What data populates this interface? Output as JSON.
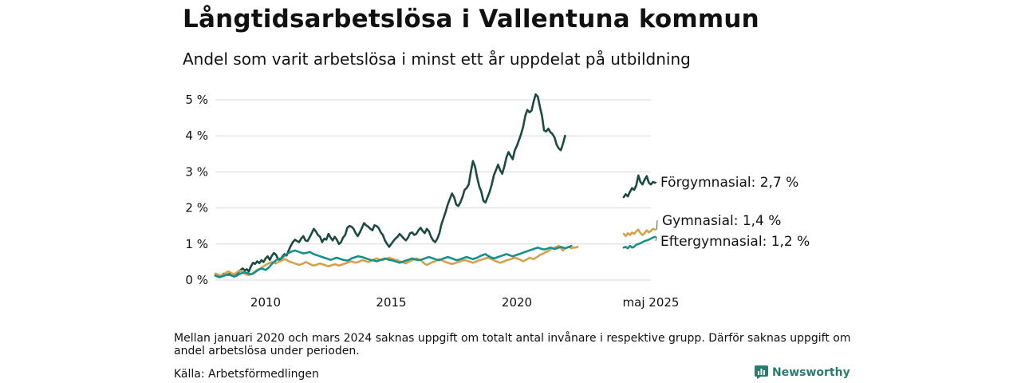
{
  "title": "Långtidsarbetslösa i Vallentuna kommun",
  "subtitle": "Andel som varit arbetslösa i minst ett år uppdelat på utbildning",
  "note": "Mellan januari 2020 och mars 2024 saknas uppgift om totalt antal invånare i respektive grupp. Därför saknas uppgift om andel arbetslösa under perioden.",
  "source": "Källa: Arbetsförmedlingen",
  "brand": "Newsworthy",
  "colors": {
    "forgymnasial": "#1d4a40",
    "gymnasial": "#d4a24c",
    "eftergymnasial": "#15908a",
    "grid": "#d9d9d9",
    "brand": "#2a7b6f"
  },
  "chart_data": {
    "type": "line",
    "title": "Långtidsarbetslösa i Vallentuna kommun",
    "subtitle": "Andel som varit arbetslösa i minst ett år uppdelat på utbildning",
    "y_unit": "%",
    "ylim": [
      0,
      5.2
    ],
    "y_ticks": [
      {
        "value": 0,
        "label": "0 %"
      },
      {
        "value": 1,
        "label": "1 %"
      },
      {
        "value": 2,
        "label": "2 %"
      },
      {
        "value": 3,
        "label": "3 %"
      },
      {
        "value": 4,
        "label": "4 %"
      },
      {
        "value": 5,
        "label": "5 %"
      }
    ],
    "x_ticks": [
      {
        "date": "2010-01",
        "label": "2010"
      },
      {
        "date": "2015-01",
        "label": "2015"
      },
      {
        "date": "2020-01",
        "label": "2020"
      },
      {
        "date": "2025-05",
        "label": "maj 2025"
      }
    ],
    "grid": true,
    "legend": "direct labels at right end of lines",
    "series": [
      {
        "name": "Förgymnasial",
        "end_label": "Förgymnasial: 2,7 %",
        "color": "#1d4a40",
        "segments": [
          {
            "start": "2008-01",
            "values": [
              0.13,
              0.1,
              0.08,
              0.12,
              0.18,
              0.16,
              0.14,
              0.2,
              0.15,
              0.1,
              0.18,
              0.22,
              0.28,
              0.32,
              0.27,
              0.3,
              0.24,
              0.38,
              0.48,
              0.45,
              0.52,
              0.47,
              0.55,
              0.5,
              0.6,
              0.66,
              0.56,
              0.68,
              0.75,
              0.7,
              0.58,
              0.55,
              0.65,
              0.72,
              0.68,
              0.82,
              0.95,
              1.05,
              1.12,
              1.08,
              1.05,
              1.15,
              1.22,
              1.1,
              1.08,
              1.18,
              1.3,
              1.42,
              1.35,
              1.25,
              1.2,
              1.05,
              1.15,
              1.12,
              1.28,
              1.18,
              1.1,
              1.2,
              1.12,
              1.0,
              1.05,
              1.18,
              1.25,
              1.45,
              1.5,
              1.48,
              1.42,
              1.3,
              1.22,
              1.32,
              1.45,
              1.58,
              1.52,
              1.48,
              1.42,
              1.38,
              1.52,
              1.5,
              1.44,
              1.32,
              1.25,
              1.1,
              1.0,
              0.92,
              1.0,
              1.08,
              1.15,
              1.2,
              1.28,
              1.22,
              1.15,
              1.1,
              1.18,
              1.3,
              1.32,
              1.25,
              1.28,
              1.38,
              1.45,
              1.36,
              1.3,
              1.42,
              1.35,
              1.2,
              1.1,
              1.05,
              1.15,
              1.3,
              1.55,
              1.72,
              1.9,
              2.1,
              2.25,
              2.4,
              2.3,
              2.1,
              2.05,
              2.15,
              2.3,
              2.5,
              2.55,
              2.65,
              3.0,
              3.3,
              3.15,
              2.85,
              2.6,
              2.45,
              2.2,
              2.15,
              2.3,
              2.45,
              2.65,
              2.9,
              3.05,
              3.2,
              3.05,
              2.95,
              3.15,
              3.4,
              3.55,
              3.45,
              3.35,
              3.6,
              3.72,
              3.88,
              4.05,
              4.25,
              4.55,
              4.72,
              4.65,
              4.7,
              4.95,
              5.15,
              5.08,
              4.8,
              4.55,
              4.15,
              4.12,
              4.2,
              4.1,
              4.05,
              3.95,
              3.75,
              3.65,
              3.6,
              3.78,
              4.0
            ]
          },
          {
            "start": "2024-04",
            "values": [
              2.3,
              2.38,
              2.32,
              2.45,
              2.55,
              2.5,
              2.62,
              2.9,
              2.72,
              2.65,
              2.78,
              2.88,
              2.7,
              2.65,
              2.72,
              2.7
            ]
          }
        ]
      },
      {
        "name": "Gymnasial",
        "end_label": "Gymnasial: 1,4 %",
        "color": "#d4a24c",
        "segments": [
          {
            "start": "2008-01",
            "values": [
              0.18,
              0.16,
              0.14,
              0.12,
              0.16,
              0.2,
              0.24,
              0.22,
              0.18,
              0.16,
              0.2,
              0.25,
              0.26,
              0.22,
              0.18,
              0.15,
              0.14,
              0.16,
              0.2,
              0.24,
              0.28,
              0.3,
              0.34,
              0.38,
              0.42,
              0.45,
              0.48,
              0.5,
              0.48,
              0.46,
              0.5,
              0.52,
              0.55,
              0.58,
              0.56,
              0.52,
              0.5,
              0.48,
              0.46,
              0.44,
              0.42,
              0.44,
              0.46,
              0.5,
              0.48,
              0.45,
              0.42,
              0.4,
              0.42,
              0.44,
              0.46,
              0.44,
              0.42,
              0.4,
              0.38,
              0.4,
              0.42,
              0.44,
              0.42,
              0.4,
              0.42,
              0.44,
              0.46,
              0.48,
              0.5,
              0.52,
              0.5,
              0.48,
              0.5,
              0.52,
              0.55,
              0.54,
              0.52,
              0.5,
              0.52,
              0.55,
              0.58,
              0.6,
              0.58,
              0.56,
              0.55,
              0.58,
              0.6,
              0.62,
              0.6,
              0.58,
              0.56,
              0.55,
              0.52,
              0.5,
              0.48,
              0.46,
              0.5,
              0.52,
              0.55,
              0.58,
              0.6,
              0.58,
              0.56,
              0.5,
              0.45,
              0.42,
              0.45,
              0.48,
              0.5,
              0.52,
              0.55,
              0.58,
              0.56,
              0.52,
              0.5,
              0.48,
              0.46,
              0.45,
              0.46,
              0.48,
              0.5,
              0.52,
              0.54,
              0.55,
              0.54,
              0.52,
              0.5,
              0.48,
              0.5,
              0.52,
              0.55,
              0.56,
              0.58,
              0.6,
              0.62,
              0.6,
              0.58,
              0.55,
              0.52,
              0.5,
              0.48,
              0.5,
              0.52,
              0.55,
              0.56,
              0.58,
              0.6,
              0.62,
              0.6,
              0.58,
              0.55,
              0.52,
              0.55,
              0.58,
              0.62,
              0.6,
              0.58,
              0.62,
              0.65,
              0.7,
              0.72,
              0.75,
              0.78,
              0.8,
              0.85,
              0.88,
              0.9,
              0.92,
              0.95,
              0.88,
              0.82,
              0.88,
              0.9,
              0.92,
              0.88,
              0.9,
              0.9,
              0.92
            ]
          },
          {
            "start": "2024-04",
            "values": [
              1.28,
              1.22,
              1.3,
              1.25,
              1.32,
              1.28,
              1.35,
              1.4,
              1.3,
              1.25,
              1.3,
              1.38,
              1.32,
              1.36,
              1.42,
              1.4
            ]
          }
        ]
      },
      {
        "name": "Eftergymnasial",
        "end_label": "Eftergymnasial: 1,2 %",
        "color": "#15908a",
        "segments": [
          {
            "start": "2008-01",
            "values": [
              0.12,
              0.1,
              0.08,
              0.1,
              0.12,
              0.14,
              0.16,
              0.14,
              0.12,
              0.1,
              0.12,
              0.15,
              0.18,
              0.2,
              0.22,
              0.2,
              0.18,
              0.16,
              0.18,
              0.22,
              0.26,
              0.3,
              0.32,
              0.3,
              0.28,
              0.32,
              0.38,
              0.45,
              0.5,
              0.55,
              0.58,
              0.6,
              0.62,
              0.68,
              0.72,
              0.75,
              0.78,
              0.8,
              0.82,
              0.8,
              0.78,
              0.76,
              0.74,
              0.75,
              0.76,
              0.78,
              0.75,
              0.72,
              0.7,
              0.68,
              0.66,
              0.64,
              0.62,
              0.6,
              0.58,
              0.56,
              0.58,
              0.6,
              0.62,
              0.6,
              0.58,
              0.56,
              0.55,
              0.54,
              0.56,
              0.6,
              0.62,
              0.64,
              0.66,
              0.65,
              0.64,
              0.62,
              0.6,
              0.58,
              0.56,
              0.55,
              0.54,
              0.52,
              0.54,
              0.56,
              0.58,
              0.6,
              0.58,
              0.56,
              0.55,
              0.54,
              0.52,
              0.5,
              0.48,
              0.5,
              0.52,
              0.54,
              0.56,
              0.58,
              0.6,
              0.58,
              0.56,
              0.55,
              0.56,
              0.58,
              0.6,
              0.62,
              0.64,
              0.62,
              0.6,
              0.58,
              0.56,
              0.55,
              0.58,
              0.6,
              0.62,
              0.64,
              0.62,
              0.6,
              0.58,
              0.55,
              0.56,
              0.58,
              0.6,
              0.62,
              0.64,
              0.62,
              0.6,
              0.58,
              0.6,
              0.62,
              0.65,
              0.68,
              0.7,
              0.72,
              0.68,
              0.65,
              0.62,
              0.6,
              0.62,
              0.64,
              0.66,
              0.68,
              0.7,
              0.72,
              0.7,
              0.68,
              0.66,
              0.68,
              0.7,
              0.72,
              0.74,
              0.76,
              0.78,
              0.8,
              0.82,
              0.84,
              0.86,
              0.88,
              0.9,
              0.88,
              0.86,
              0.85,
              0.86,
              0.88,
              0.9,
              0.88,
              0.86,
              0.88,
              0.9,
              0.92,
              0.9,
              0.88,
              0.9,
              0.92,
              0.95
            ]
          },
          {
            "start": "2024-04",
            "values": [
              0.9,
              0.92,
              0.88,
              0.95,
              0.9,
              0.92,
              0.98,
              1.0,
              1.02,
              1.05,
              1.08,
              1.1,
              1.12,
              1.15,
              1.18,
              1.2
            ]
          }
        ]
      }
    ]
  }
}
